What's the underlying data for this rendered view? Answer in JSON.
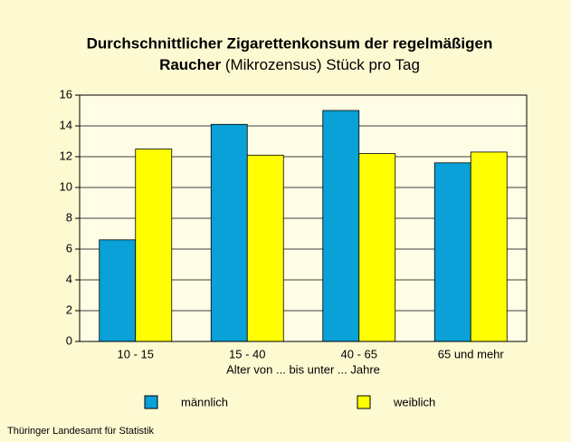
{
  "chart_data": {
    "type": "bar",
    "title": [
      "Durchschnittlicher Zigarettenkonsum der regelmäßigen",
      "Raucher"
    ],
    "subtitle": "(Mikrozensus) Stück pro Tag",
    "x_label": "Alter von ... bis unter ... Jahre",
    "categories": [
      "10 - 15",
      "15 - 40",
      "40 - 65",
      "65 und mehr"
    ],
    "series": [
      {
        "name": "männlich",
        "color": "#0aa0d8",
        "values": [
          6.6,
          14.1,
          15.0,
          11.6
        ]
      },
      {
        "name": "weiblich",
        "color": "#ffff00",
        "values": [
          12.5,
          12.1,
          12.2,
          12.3
        ]
      }
    ],
    "ylim": [
      0,
      16
    ],
    "yticks": [
      0,
      2,
      4,
      6,
      8,
      10,
      12,
      14,
      16
    ],
    "grid": true,
    "source": "Thüringer Landesamt für Statistik"
  }
}
